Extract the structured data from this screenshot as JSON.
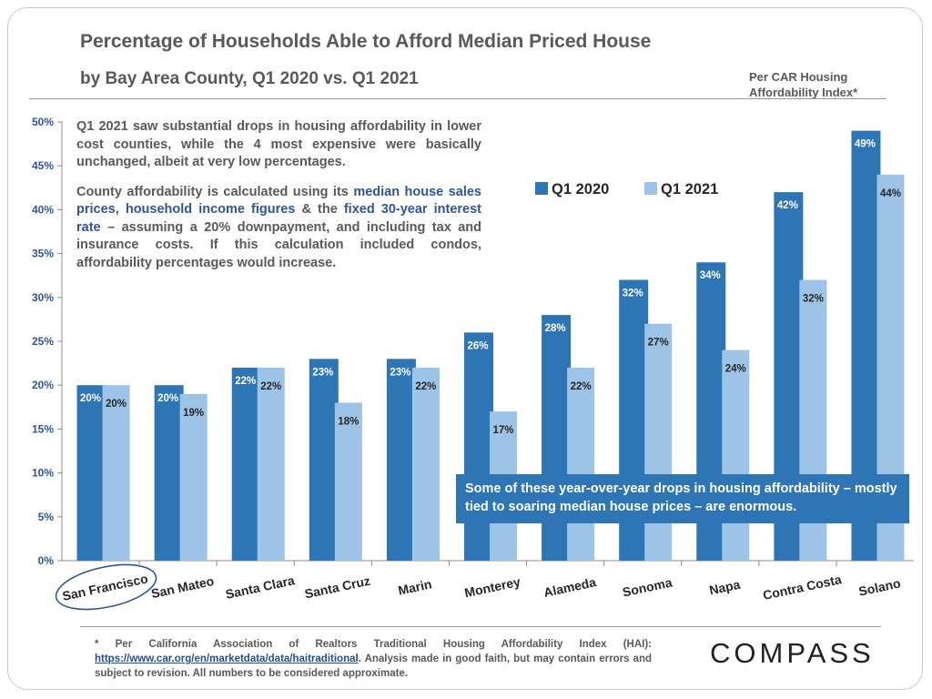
{
  "header": {
    "title": "Percentage of Households Able to Afford Median Priced House",
    "subtitle": "by Bay Area County, Q1 2020 vs. Q1 2021",
    "source_note": "Per CAR Housing Affordability Index*"
  },
  "commentary": {
    "paragraph1": "Q1 2021 saw substantial drops in housing affordability in lower cost counties, while the 4 most expensive were basically unchanged, albeit at very low percentages.",
    "p2_part1": "County affordability is calculated using its ",
    "p2_hl1": "median house sales prices",
    "p2_part2": ", ",
    "p2_hl2": "household income figures",
    "p2_part3": " & the ",
    "p2_hl3": "fixed 30-year interest rate",
    "p2_part4": " – assuming a 20% downpayment, and including tax and insurance costs. If this calculation included condos, affordability percentages would increase."
  },
  "callout": "Some of these year-over-year drops in housing affordability – mostly tied to soaring median house prices – are enormous.",
  "footnote": {
    "text1": "* Per California Association of Realtors Traditional Housing Affordability Index (HAI): ",
    "link": "https://www.car.org/en/marketdata/data/haitraditional",
    "text2": ". Analysis made in good faith, but may contain errors and subject to revision. All numbers to be considered approximate."
  },
  "logo": "COMPASS",
  "colors": {
    "q1_2020": "#2e75b6",
    "q1_2021": "#9dc3e6",
    "axis_text": "#2f5597",
    "highlight_circle": "#2f5597"
  },
  "chart_data": {
    "type": "bar",
    "categories": [
      "San Francisco",
      "San Mateo",
      "Santa Clara",
      "Santa Cruz",
      "Marin",
      "Monterey",
      "Alameda",
      "Sonoma",
      "Napa",
      "Contra Costa",
      "Solano"
    ],
    "series": [
      {
        "name": "Q1 2020",
        "values": [
          20,
          20,
          22,
          23,
          23,
          26,
          28,
          32,
          34,
          42,
          49
        ]
      },
      {
        "name": "Q1 2021",
        "values": [
          20,
          19,
          22,
          18,
          22,
          17,
          22,
          27,
          24,
          32,
          44
        ]
      }
    ],
    "y_ticks": [
      "0%",
      "5%",
      "10%",
      "15%",
      "20%",
      "25%",
      "30%",
      "35%",
      "40%",
      "45%",
      "50%"
    ],
    "ylim": [
      0,
      50
    ],
    "value_suffix": "%",
    "legend_position": "top-right",
    "highlighted_category": "San Francisco",
    "grid": false
  }
}
